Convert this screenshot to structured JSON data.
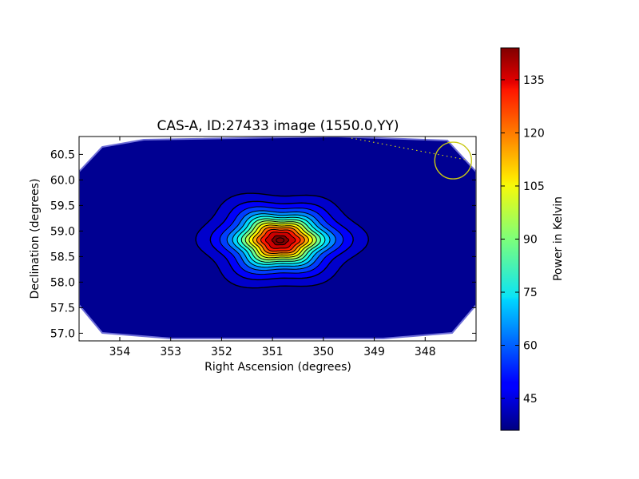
{
  "chart_data": {
    "type": "heatmap",
    "title": "CAS-A, ID:27433 image (1550.0,YY)",
    "xlabel": "Right Ascension (degrees)",
    "ylabel": "Declination (degrees)",
    "x_ticks": [
      354,
      353,
      352,
      351,
      350,
      349,
      348
    ],
    "x_tick_labels": [
      "354",
      "353",
      "352",
      "351",
      "350",
      "349",
      "348"
    ],
    "xlim": [
      354.8,
      347.0
    ],
    "y_ticks": [
      57.0,
      57.5,
      58.0,
      58.5,
      59.0,
      59.5,
      60.0,
      60.5
    ],
    "y_tick_labels": [
      "57.0",
      "57.5",
      "58.0",
      "58.5",
      "59.0",
      "59.5",
      "60.0",
      "60.5"
    ],
    "ylim": [
      56.85,
      60.85
    ],
    "colormap": "jet",
    "colorbar": {
      "label": "Power in Kelvin",
      "min": 36,
      "max": 144,
      "ticks": [
        45,
        60,
        75,
        90,
        105,
        120,
        135
      ],
      "tick_labels": [
        "45",
        "60",
        "75",
        "90",
        "105",
        "120",
        "135"
      ]
    },
    "source": {
      "ra": 350.85,
      "dec": 58.82,
      "peak_kelvin": 144,
      "background_kelvin": 38
    },
    "contour_levels": [
      40,
      45,
      52,
      60,
      68,
      76,
      84,
      92,
      100,
      108,
      116,
      124,
      132,
      140
    ],
    "marker_circle": {
      "ra": 347.45,
      "dec": 60.38,
      "color": "#c8c814"
    },
    "grid": false
  }
}
